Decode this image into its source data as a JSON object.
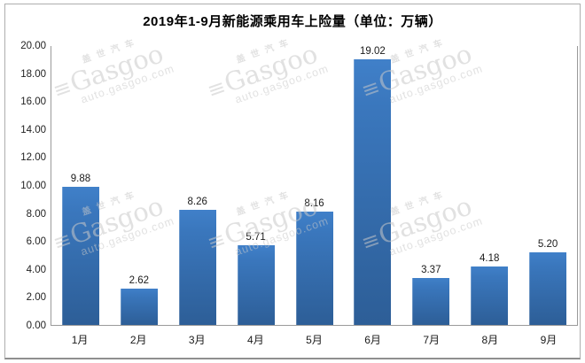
{
  "chart_data": {
    "type": "bar",
    "title": "2019年1-9月新能源乘用车上险量（单位：万辆）",
    "categories": [
      "1月",
      "2月",
      "3月",
      "4月",
      "5月",
      "6月",
      "7月",
      "8月",
      "9月"
    ],
    "values": [
      9.88,
      2.62,
      8.26,
      5.71,
      8.16,
      19.02,
      3.37,
      4.18,
      5.2
    ],
    "value_labels": [
      "9.88",
      "2.62",
      "8.26",
      "5.71",
      "8.16",
      "19.02",
      "3.37",
      "4.18",
      "5.20"
    ],
    "unit": "万辆",
    "xlabel": "",
    "ylabel": "",
    "ylim": [
      0,
      20
    ],
    "ytick_step": 2,
    "ytick_labels": [
      "20.00",
      "18.00",
      "16.00",
      "14.00",
      "12.00",
      "10.00",
      "8.00",
      "6.00",
      "4.00",
      "2.00",
      "0.00"
    ],
    "grid": false,
    "legend": "none",
    "bar_color_top": "#4080c9",
    "bar_color_bottom": "#2d5e97",
    "axis_line_color": "#9a9a9a"
  },
  "watermark": {
    "brand_cn": "盖世汽车",
    "brand": "Gasgoo",
    "url": "auto.gasgoo.com",
    "logo_glyph": "≡",
    "color": "#c9c9c9"
  }
}
